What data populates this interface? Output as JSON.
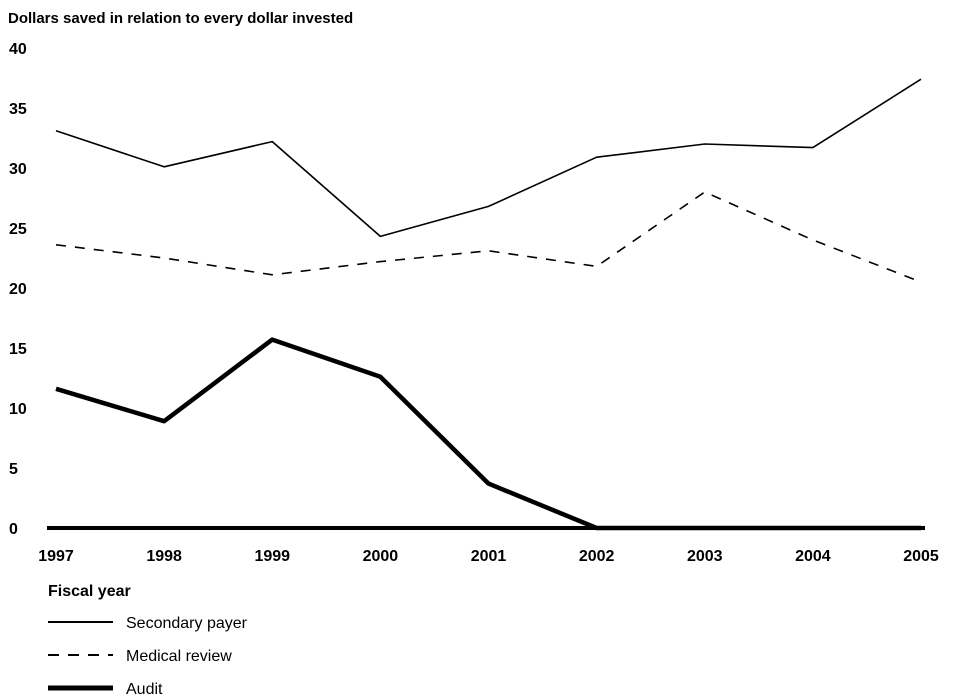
{
  "chart_data": {
    "type": "line",
    "ylabel": "Dollars saved in relation to every dollar invested",
    "xlabel": "Fiscal year",
    "x": [
      "1997",
      "1998",
      "1999",
      "2000",
      "2001",
      "2002",
      "2003",
      "2004",
      "2005"
    ],
    "y_ticks": [
      "0",
      "5",
      "10",
      "15",
      "20",
      "25",
      "30",
      "35",
      "40"
    ],
    "ylim": [
      0,
      40
    ],
    "grid": false,
    "legend_position": "bottom-left",
    "series": [
      {
        "name": "Secondary payer",
        "style": "solid",
        "values": [
          33.1,
          30.1,
          32.2,
          24.3,
          26.8,
          30.9,
          32.0,
          31.7,
          37.4
        ]
      },
      {
        "name": "Medical review",
        "style": "dashed",
        "values": [
          23.6,
          22.5,
          21.1,
          22.2,
          23.1,
          21.8,
          28.0,
          24.0,
          20.5
        ]
      },
      {
        "name": "Audit",
        "style": "thick",
        "values": [
          11.6,
          8.9,
          15.7,
          12.6,
          3.7,
          0.0,
          0.0,
          0.0,
          0.0
        ]
      }
    ]
  }
}
